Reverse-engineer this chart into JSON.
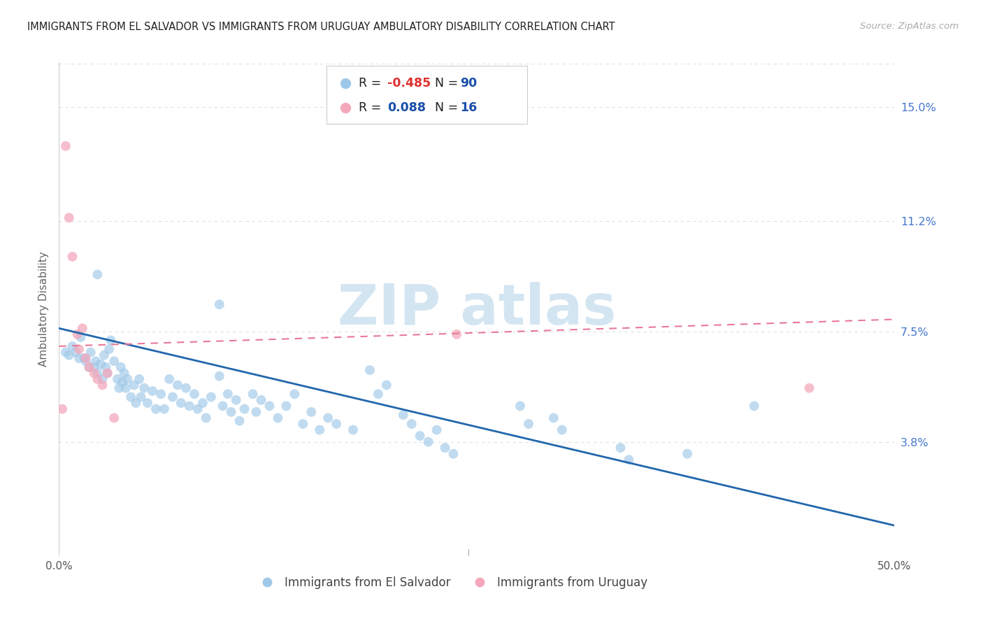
{
  "title": "IMMIGRANTS FROM EL SALVADOR VS IMMIGRANTS FROM URUGUAY AMBULATORY DISABILITY CORRELATION CHART",
  "source": "Source: ZipAtlas.com",
  "ylabel": "Ambulatory Disability",
  "xmin": 0.0,
  "xmax": 0.5,
  "ymin": 0.0,
  "ymax": 0.165,
  "right_yticks": [
    0.0,
    0.038,
    0.075,
    0.112,
    0.15
  ],
  "right_yticklabels": [
    "",
    "3.8%",
    "7.5%",
    "11.2%",
    "15.0%"
  ],
  "blue_scatter": [
    [
      0.004,
      0.068
    ],
    [
      0.006,
      0.067
    ],
    [
      0.008,
      0.07
    ],
    [
      0.01,
      0.068
    ],
    [
      0.012,
      0.066
    ],
    [
      0.013,
      0.073
    ],
    [
      0.015,
      0.066
    ],
    [
      0.016,
      0.065
    ],
    [
      0.018,
      0.063
    ],
    [
      0.019,
      0.068
    ],
    [
      0.021,
      0.063
    ],
    [
      0.022,
      0.065
    ],
    [
      0.023,
      0.061
    ],
    [
      0.025,
      0.064
    ],
    [
      0.026,
      0.059
    ],
    [
      0.027,
      0.067
    ],
    [
      0.028,
      0.063
    ],
    [
      0.029,
      0.061
    ],
    [
      0.03,
      0.069
    ],
    [
      0.031,
      0.072
    ],
    [
      0.033,
      0.065
    ],
    [
      0.035,
      0.059
    ],
    [
      0.036,
      0.056
    ],
    [
      0.037,
      0.063
    ],
    [
      0.038,
      0.058
    ],
    [
      0.039,
      0.061
    ],
    [
      0.04,
      0.056
    ],
    [
      0.041,
      0.059
    ],
    [
      0.043,
      0.053
    ],
    [
      0.045,
      0.057
    ],
    [
      0.046,
      0.051
    ],
    [
      0.048,
      0.059
    ],
    [
      0.049,
      0.053
    ],
    [
      0.051,
      0.056
    ],
    [
      0.053,
      0.051
    ],
    [
      0.056,
      0.055
    ],
    [
      0.058,
      0.049
    ],
    [
      0.061,
      0.054
    ],
    [
      0.063,
      0.049
    ],
    [
      0.066,
      0.059
    ],
    [
      0.068,
      0.053
    ],
    [
      0.071,
      0.057
    ],
    [
      0.073,
      0.051
    ],
    [
      0.076,
      0.056
    ],
    [
      0.078,
      0.05
    ],
    [
      0.081,
      0.054
    ],
    [
      0.083,
      0.049
    ],
    [
      0.086,
      0.051
    ],
    [
      0.088,
      0.046
    ],
    [
      0.091,
      0.053
    ],
    [
      0.096,
      0.06
    ],
    [
      0.098,
      0.05
    ],
    [
      0.101,
      0.054
    ],
    [
      0.103,
      0.048
    ],
    [
      0.106,
      0.052
    ],
    [
      0.108,
      0.045
    ],
    [
      0.111,
      0.049
    ],
    [
      0.116,
      0.054
    ],
    [
      0.118,
      0.048
    ],
    [
      0.121,
      0.052
    ],
    [
      0.126,
      0.05
    ],
    [
      0.131,
      0.046
    ],
    [
      0.136,
      0.05
    ],
    [
      0.141,
      0.054
    ],
    [
      0.146,
      0.044
    ],
    [
      0.151,
      0.048
    ],
    [
      0.156,
      0.042
    ],
    [
      0.161,
      0.046
    ],
    [
      0.166,
      0.044
    ],
    [
      0.176,
      0.042
    ],
    [
      0.186,
      0.062
    ],
    [
      0.191,
      0.054
    ],
    [
      0.196,
      0.057
    ],
    [
      0.206,
      0.047
    ],
    [
      0.211,
      0.044
    ],
    [
      0.216,
      0.04
    ],
    [
      0.221,
      0.038
    ],
    [
      0.226,
      0.042
    ],
    [
      0.231,
      0.036
    ],
    [
      0.236,
      0.034
    ],
    [
      0.276,
      0.05
    ],
    [
      0.281,
      0.044
    ],
    [
      0.296,
      0.046
    ],
    [
      0.301,
      0.042
    ],
    [
      0.336,
      0.036
    ],
    [
      0.341,
      0.032
    ],
    [
      0.376,
      0.034
    ],
    [
      0.023,
      0.094
    ],
    [
      0.096,
      0.084
    ],
    [
      0.416,
      0.05
    ]
  ],
  "pink_scatter": [
    [
      0.004,
      0.137
    ],
    [
      0.006,
      0.113
    ],
    [
      0.008,
      0.1
    ],
    [
      0.011,
      0.074
    ],
    [
      0.012,
      0.069
    ],
    [
      0.014,
      0.076
    ],
    [
      0.016,
      0.066
    ],
    [
      0.018,
      0.063
    ],
    [
      0.021,
      0.061
    ],
    [
      0.023,
      0.059
    ],
    [
      0.026,
      0.057
    ],
    [
      0.029,
      0.061
    ],
    [
      0.033,
      0.046
    ],
    [
      0.238,
      0.074
    ],
    [
      0.002,
      0.049
    ],
    [
      0.449,
      0.056
    ]
  ],
  "blue_line_x": [
    0.0,
    0.5
  ],
  "blue_line_y": [
    0.076,
    0.01
  ],
  "pink_line_x": [
    0.0,
    0.5
  ],
  "pink_line_y": [
    0.07,
    0.079
  ],
  "blue_color": "#9fc8e8",
  "pink_color": "#f4a8bc",
  "blue_line_color": "#2166ac",
  "pink_line_color": "#e87898",
  "watermark_color": "#d4e5f2",
  "grid_color": "#e0e0e0",
  "label_blue": "Immigrants from El Salvador",
  "label_pink": "Immigrants from Uruguay",
  "source_text": "Source: ZipAtlas.com",
  "leg_r1_color": "#e03030",
  "leg_n_color": "#1a4faa",
  "leg_text_color": "#222222"
}
